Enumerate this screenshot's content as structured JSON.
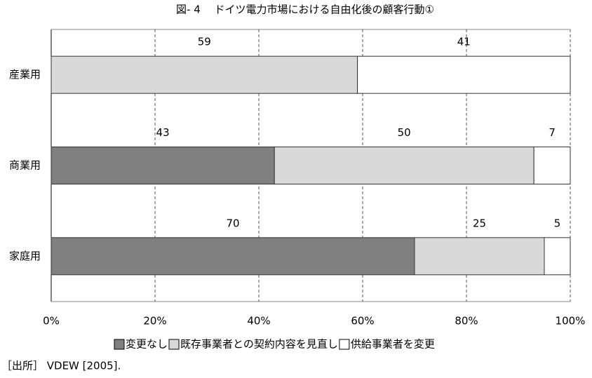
{
  "chart_data": {
    "type": "stacked-barh",
    "title": "図- 4　 ドイツ電力市場における自由化後の顧客行動①",
    "categories": [
      "産業用",
      "商業用",
      "家庭用"
    ],
    "series": [
      {
        "name": "変更なし",
        "color": "#808080",
        "values": [
          null,
          43,
          70
        ]
      },
      {
        "name": "既存事業者との契約内容を見直し",
        "color": "#d9d9d9",
        "values": [
          59,
          50,
          25
        ]
      },
      {
        "name": "供給事業者を変更",
        "color": "#ffffff",
        "values": [
          41,
          7,
          5
        ]
      }
    ],
    "xlim": [
      0,
      100
    ],
    "xticks": [
      {
        "value": 0,
        "label": "0%"
      },
      {
        "value": 20,
        "label": "20%"
      },
      {
        "value": 40,
        "label": "40%"
      },
      {
        "value": 60,
        "label": "60%"
      },
      {
        "value": 80,
        "label": "80%"
      },
      {
        "value": 100,
        "label": "100%"
      }
    ],
    "grid": true,
    "legend": "bottom",
    "source": "［出所］ VDEW [2005]."
  }
}
